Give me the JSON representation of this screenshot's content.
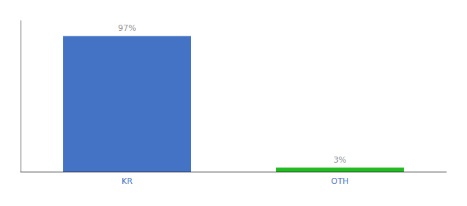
{
  "chart_data": {
    "type": "bar",
    "categories": [
      "KR",
      "OTH"
    ],
    "values": [
      97,
      3
    ],
    "value_labels": [
      "97%",
      "3%"
    ],
    "data_labels": true,
    "colors": [
      "#4472c4",
      "#22bb22"
    ],
    "ylim": [
      0,
      108
    ],
    "grid": false,
    "tick_labels": "x"
  }
}
